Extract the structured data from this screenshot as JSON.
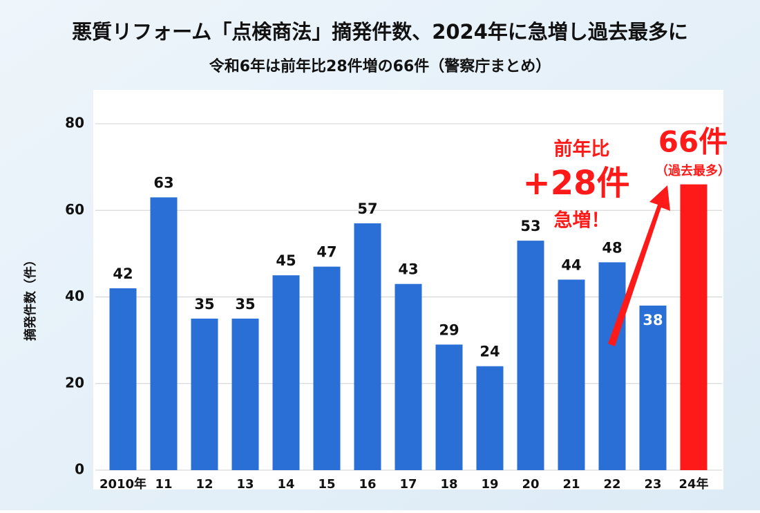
{
  "chart_data": {
    "type": "bar",
    "title": "悪質リフォーム「点検商法」摘発件数、2024年に急増し過去最多に",
    "subtitle": "令和6年は前年比28件増の66件（警察庁まとめ）",
    "y_label": "摘発件数（件）",
    "categories": [
      "2010年",
      "11",
      "12",
      "13",
      "14",
      "15",
      "16",
      "17",
      "18",
      "19",
      "20",
      "21",
      "22",
      "23",
      "24年"
    ],
    "values": [
      42,
      63,
      35,
      35,
      45,
      47,
      57,
      43,
      29,
      24,
      53,
      44,
      48,
      38,
      66
    ],
    "color": "#2a6fd6",
    "colors": [
      "#2a6fd6",
      "#2a6fd6",
      "#2a6fd6",
      "#2a6fd6",
      "#2a6fd6",
      "#2a6fd6",
      "#2a6fd6",
      "#2a6fd6",
      "#2a6fd6",
      "#2a6fd6",
      "#2a6fd6",
      "#2a6fd6",
      "#2a6fd6",
      "#2a6fd6",
      "#ff1a1a"
    ],
    "ylim": [
      0,
      80
    ],
    "yticks": [
      0,
      20,
      40,
      60,
      80
    ],
    "grid": true,
    "annotations": {
      "change_prefix": "前年比",
      "change": "+28件",
      "change_suffix": "急増！",
      "record": "66件",
      "record_note": "（過去最多）"
    }
  }
}
